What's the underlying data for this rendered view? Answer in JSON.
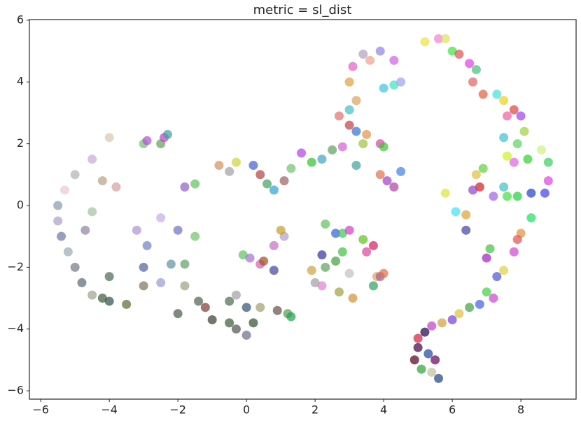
{
  "chart_data": {
    "type": "scatter",
    "title": "metric = sl_dist",
    "xlim": [
      -6.33,
      9.61
    ],
    "ylim": [
      -6.27,
      6.02
    ],
    "xticks": [
      {
        "value": -6,
        "label": "−6"
      },
      {
        "value": -4,
        "label": "−4"
      },
      {
        "value": -2,
        "label": "−2"
      },
      0,
      2,
      4,
      6,
      8
    ],
    "yticks": [
      {
        "value": -6,
        "label": "−6"
      },
      {
        "value": -4,
        "label": "−4"
      },
      {
        "value": -2,
        "label": "−2"
      },
      0,
      2,
      4,
      6
    ],
    "x": [
      -4,
      -4.5,
      -5,
      -5.3,
      -5.5,
      -5.5,
      -5.4,
      -5.2,
      -5,
      -4.8,
      -4.5,
      -4,
      -3.5,
      -4.2,
      -3.8,
      -4.5,
      -4.7,
      -4,
      -3,
      -3,
      -2.5,
      -2.2,
      -3.2,
      -2.9,
      -2.5,
      -2,
      -1.5,
      -1.8,
      -1.8,
      -1.4,
      -1.2,
      -1,
      -2,
      -0.5,
      -0.3,
      -0.5,
      -0.3,
      0,
      0.2,
      0.4,
      0,
      0.4,
      0.5,
      0.8,
      0.8,
      1.1,
      1,
      1.2,
      1.3,
      0.9,
      -0.1,
      0.1,
      -3,
      -2.9,
      -2.5,
      -2.4,
      -2.3,
      -1.8,
      -1.5,
      -0.8,
      -0.5,
      -0.3,
      0.2,
      0.4,
      0.6,
      0.8,
      1.1,
      1.3,
      1.6,
      1.9,
      2.2,
      2.5,
      2.8,
      3.2,
      3.4,
      3.5,
      3,
      3.2,
      2.7,
      3,
      3.2,
      3.9,
      4,
      3.9,
      4.1,
      4.3,
      4.5,
      3,
      3.1,
      3.4,
      3.6,
      3.9,
      4.3,
      4,
      4.3,
      4.5,
      5.2,
      5.6,
      5.8,
      6,
      6.2,
      6.5,
      6.6,
      6.7,
      6.9,
      7.3,
      7.5,
      7.6,
      7.8,
      8,
      8.1,
      7.9,
      7.5,
      7.6,
      7.8,
      8.2,
      8.6,
      8.8,
      8.8,
      8.7,
      8.3,
      7.9,
      7.6,
      7.5,
      7.2,
      6.8,
      6.7,
      6.9,
      6.6,
      6.4,
      6.4,
      5.8,
      6.1,
      8.3,
      8,
      7.9,
      7.8,
      7.5,
      7.3,
      7,
      7.2,
      6.8,
      6.5,
      6.2,
      6,
      5.7,
      5.4,
      5.2,
      5,
      5,
      4.9,
      5.3,
      5.5,
      5.4,
      5.6,
      5.1,
      7,
      7.1,
      2.3,
      2.6,
      2.8,
      3,
      3.4,
      3.5,
      3.7,
      2.8,
      2.6,
      3,
      2.3,
      1.9,
      2,
      2.2,
      2.7,
      3.1,
      3.8,
      3.7,
      3.9,
      2.2,
      4,
      -4.2
    ],
    "values": [
      2.2,
      1.5,
      1,
      0.5,
      0,
      -0.5,
      -1,
      -1.5,
      -2,
      -2.5,
      -2.9,
      -3.1,
      -3.2,
      0.8,
      0.6,
      -0.2,
      -0.8,
      -2.3,
      -2,
      -2.6,
      -2.5,
      -1.9,
      -0.8,
      -1.3,
      -0.4,
      -0.8,
      -1,
      -1.9,
      -2.6,
      -3.1,
      -3.3,
      -3.7,
      -3.5,
      -3.1,
      -2.9,
      -3.8,
      -4,
      -4.2,
      -3.8,
      -3.3,
      -3.3,
      -1.9,
      -1.8,
      -2.1,
      -1.3,
      -1,
      -0.8,
      -3.5,
      -3.6,
      -3.4,
      -1.6,
      -1.7,
      2,
      2.1,
      2,
      2.2,
      2.3,
      0.6,
      0.7,
      1.3,
      1.1,
      1.4,
      1.3,
      1,
      0.7,
      0.5,
      0.8,
      1.2,
      1.7,
      1.4,
      1.5,
      1.8,
      1.9,
      1.3,
      2,
      2.3,
      2.6,
      2.4,
      2.9,
      3.1,
      3.4,
      2,
      1.9,
      1,
      0.8,
      0.6,
      1.1,
      4,
      4.5,
      4.9,
      4.7,
      5,
      4.7,
      3.8,
      3.9,
      4,
      5.3,
      5.4,
      5.4,
      5,
      4.9,
      4.6,
      4,
      4.4,
      3.6,
      3.6,
      3.4,
      2.9,
      3.1,
      2.9,
      2.4,
      2,
      2.2,
      1.6,
      1.4,
      1.5,
      1.8,
      1.4,
      0.8,
      0.4,
      0.4,
      0.3,
      0.3,
      0.6,
      0.3,
      0.6,
      1,
      1.2,
      0.5,
      -0.3,
      -0.8,
      0.4,
      -0.2,
      -0.4,
      -0.9,
      -1.1,
      -1.5,
      -2.1,
      -2.3,
      -2.8,
      -3,
      -3.2,
      -3.3,
      -3.5,
      -3.7,
      -3.8,
      -3.9,
      -4.1,
      -4.3,
      -4.6,
      -5,
      -4.8,
      -5,
      -5.4,
      -5.6,
      -5.3,
      -1.7,
      -1.4,
      -0.6,
      -0.9,
      -0.9,
      -0.8,
      -1.1,
      -1.5,
      -1.3,
      -1.5,
      -1.8,
      -2.2,
      -2,
      -2.1,
      -2.5,
      -2.6,
      -2.8,
      -3,
      -2.3,
      -2.6,
      -2.3,
      -1.6,
      -2.2,
      -3
    ],
    "colors": [
      "#d8c8b0",
      "#c8a8d8",
      "#b0b0b0",
      "#e8c8d0",
      "#8898a8",
      "#a8a0c8",
      "#6878a0",
      "#98a8b8",
      "#707888",
      "#586878",
      "#a0a090",
      "#2f4f4f",
      "#556b2f",
      "#b8a080",
      "#d0a0a0",
      "#a0c0a0",
      "#9080a0",
      "#4a6a50",
      "#5060a0",
      "#807060",
      "#9a9ad0",
      "#6090a0",
      "#b090d0",
      "#7080c0",
      "#c8a8e8",
      "#7070c0",
      "#70c070",
      "#60a060",
      "#a0a080",
      "#506050",
      "#7a3a30",
      "#3a3a30",
      "#485848",
      "#4a6a4a",
      "#a0a0a0",
      "#3a5a3a",
      "#505050",
      "#6a6a8a",
      "#2f4f2f",
      "#a0a070",
      "#305070",
      "#d060b0",
      "#a05020",
      "#4040a0",
      "#c070c0",
      "#b0a0d0",
      "#c0a020",
      "#50a050",
      "#20a050",
      "#605040",
      "#60c060",
      "#a070d0",
      "#70c070",
      "#b050d0",
      "#60a060",
      "#c040c0",
      "#40a0a0",
      "#9060c0",
      "#60c060",
      "#d09060",
      "#a0a0a0",
      "#d0d040",
      "#4060d0",
      "#b04040",
      "#40a060",
      "#30a0d0",
      "#a06060",
      "#70c070",
      "#b040e0",
      "#30c030",
      "#40a0c0",
      "#60a060",
      "#d060d0",
      "#40a0a0",
      "#a0c040",
      "#e09050",
      "#c04040",
      "#3070d0",
      "#e07070",
      "#40c0c0",
      "#e0a060",
      "#e040a0",
      "#40c040",
      "#e07050",
      "#a040c0",
      "#b040a0",
      "#4080e0",
      "#e0a040",
      "#e060c0",
      "#b0a0c0",
      "#f0a090",
      "#9080e0",
      "#d060e0",
      "#40c0e0",
      "#40e0c0",
      "#a0a0f0",
      "#f0e040",
      "#f080d0",
      "#e0e060",
      "#40e040",
      "#e05050",
      "#e040e0",
      "#e06060",
      "#40c080",
      "#e06040",
      "#40e0e0",
      "#f0d020",
      "#f060a0",
      "#e04040",
      "#a040f0",
      "#a0d040",
      "#60d060",
      "#40c0d0",
      "#d0f020",
      "#e060e0",
      "#30d030",
      "#d0f080",
      "#30d060",
      "#e040e0",
      "#4040e0",
      "#2040c0",
      "#20d040",
      "#40e040",
      "#40c0c0",
      "#a060e0",
      "#d02020",
      "#e0c040",
      "#60d040",
      "#9040d0",
      "#e0a030",
      "#4040a0",
      "#e0e040",
      "#40e0f0",
      "#20e060",
      "#e09040",
      "#e05050",
      "#d040d0",
      "#e0d040",
      "#5050d0",
      "#40d040",
      "#d040d0",
      "#4060e0",
      "#40a040",
      "#e0c040",
      "#7040d0",
      "#d0a040",
      "#c040c0",
      "#200040",
      "#d02040",
      "#400040",
      "#500020",
      "#2040a0",
      "#600060",
      "#c0c0a0",
      "#204080",
      "#30a030",
      "#a020c0",
      "#40c040",
      "#60c060",
      "#3060d0",
      "#40c060",
      "#d040c0",
      "#60c020",
      "#e040a0",
      "#d02060",
      "#40c040",
      "#40a040",
      "#c0c0c0",
      "#60a060",
      "#d0a040",
      "#a0a0a0",
      "#e080d0",
      "#a0a040",
      "#d09040",
      "#e0a060",
      "#30a060",
      "#a060a0",
      "#3030a0",
      "#e07040",
      "#3a5a3a"
    ]
  }
}
